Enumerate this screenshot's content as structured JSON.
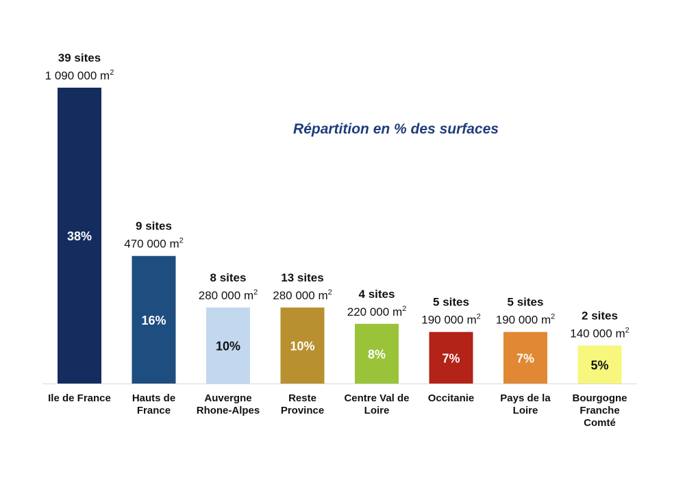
{
  "chart_data": {
    "type": "bar",
    "title": "Répartition en % des surfaces",
    "title_color": "#1f3d7a",
    "unit_suffix": "m",
    "unit_superscript": "2",
    "categories": [
      [
        "Ile de France"
      ],
      [
        "Hauts de",
        "France"
      ],
      [
        "Auvergne",
        "Rhone-Alpes"
      ],
      [
        "Reste",
        "Province"
      ],
      [
        "Centre Val de",
        "Loire"
      ],
      [
        "Occitanie"
      ],
      [
        "Pays de la",
        "Loire"
      ],
      [
        "Bourgogne",
        "Franche",
        "Comté"
      ]
    ],
    "values": [
      1090000,
      470000,
      280000,
      280000,
      220000,
      190000,
      190000,
      140000
    ],
    "surface_labels": [
      "1 090 000",
      "470 000",
      "280 000",
      "280 000",
      "220 000",
      "190 000",
      "190 000",
      "140 000"
    ],
    "percent_labels": [
      "38%",
      "16%",
      "10%",
      "10%",
      "8%",
      "7%",
      "7%",
      "5%"
    ],
    "sites_labels": [
      "39 sites",
      "9 sites",
      "8 sites",
      "13 sites",
      "4 sites",
      "5 sites",
      "5 sites",
      "2 sites"
    ],
    "colors": [
      "#142d5e",
      "#1e4d80",
      "#c2d8ee",
      "#b8902f",
      "#9ac33a",
      "#b32318",
      "#e08834",
      "#f6f77c"
    ],
    "percent_label_colors": [
      "#ffffff",
      "#ffffff",
      "#111111",
      "#ffffff",
      "#ffffff",
      "#ffffff",
      "#ffffff",
      "#111111"
    ],
    "ylim": [
      0,
      1090000
    ],
    "grid": false,
    "legend": "none"
  }
}
